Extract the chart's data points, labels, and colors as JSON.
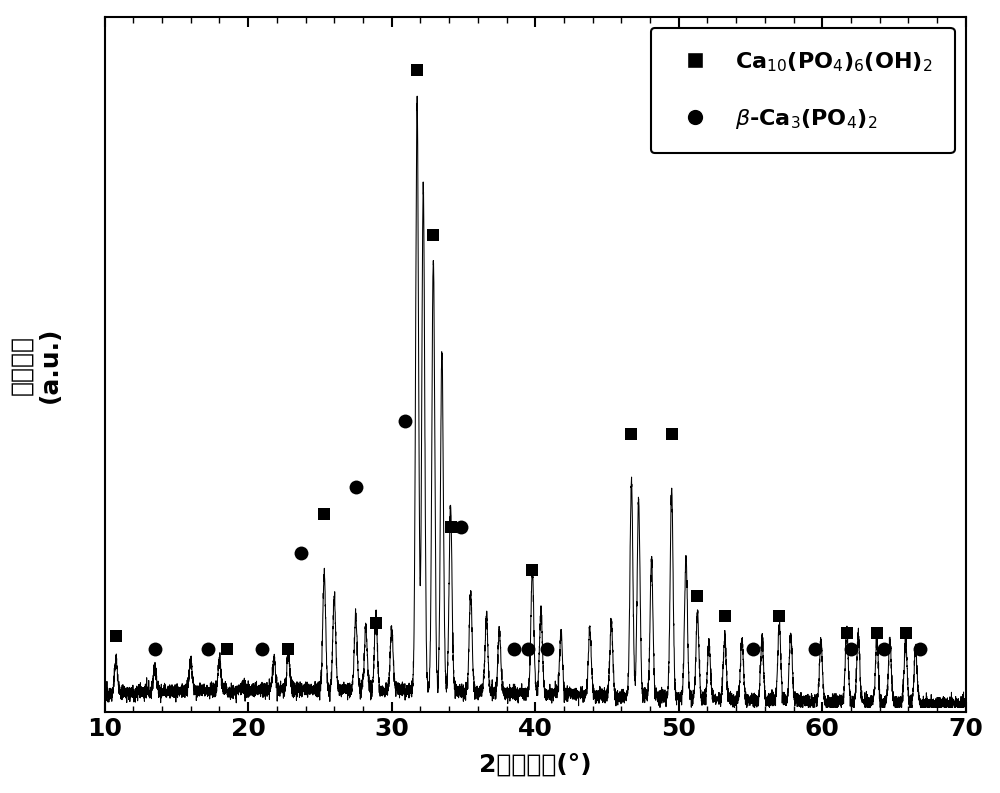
{
  "xlim": [
    10,
    70
  ],
  "ylim": [
    0,
    1.05
  ],
  "xlabel": "2倍衍射角(°)",
  "ylabel": "衍射强度（a.u.）",
  "ylabel_plain": "(a.u.)",
  "ylabel_chinese": "衍射强度",
  "background_color": "#ffffff",
  "line_color": "#000000",
  "marker_color": "#000000",
  "peaks": [
    [
      10.8,
      0.055
    ],
    [
      13.5,
      0.045
    ],
    [
      16.0,
      0.05
    ],
    [
      18.0,
      0.05
    ],
    [
      21.8,
      0.05
    ],
    [
      22.8,
      0.06
    ],
    [
      25.3,
      0.19
    ],
    [
      26.0,
      0.15
    ],
    [
      27.5,
      0.12
    ],
    [
      28.2,
      0.1
    ],
    [
      28.9,
      0.12
    ],
    [
      30.0,
      0.1
    ],
    [
      31.77,
      0.96
    ],
    [
      32.2,
      0.82
    ],
    [
      32.9,
      0.7
    ],
    [
      33.5,
      0.55
    ],
    [
      34.1,
      0.3
    ],
    [
      35.5,
      0.16
    ],
    [
      36.6,
      0.12
    ],
    [
      37.5,
      0.1
    ],
    [
      39.8,
      0.2
    ],
    [
      40.4,
      0.13
    ],
    [
      41.8,
      0.1
    ],
    [
      43.8,
      0.11
    ],
    [
      45.3,
      0.12
    ],
    [
      46.7,
      0.35
    ],
    [
      47.2,
      0.32
    ],
    [
      48.1,
      0.22
    ],
    [
      49.5,
      0.34
    ],
    [
      50.5,
      0.23
    ],
    [
      51.3,
      0.14
    ],
    [
      52.1,
      0.09
    ],
    [
      53.2,
      0.1
    ],
    [
      54.4,
      0.1
    ],
    [
      55.8,
      0.1
    ],
    [
      57.0,
      0.12
    ],
    [
      57.8,
      0.11
    ],
    [
      59.9,
      0.1
    ],
    [
      61.7,
      0.12
    ],
    [
      62.5,
      0.11
    ],
    [
      63.8,
      0.1
    ],
    [
      64.7,
      0.1
    ],
    [
      65.8,
      0.1
    ],
    [
      66.5,
      0.09
    ]
  ],
  "hap_markers": [
    [
      10.8,
      0.115
    ],
    [
      18.5,
      0.095
    ],
    [
      22.8,
      0.095
    ],
    [
      25.3,
      0.3
    ],
    [
      28.9,
      0.135
    ],
    [
      31.77,
      0.97
    ],
    [
      32.9,
      0.72
    ],
    [
      34.1,
      0.28
    ],
    [
      39.8,
      0.215
    ],
    [
      46.7,
      0.42
    ],
    [
      49.5,
      0.42
    ],
    [
      51.3,
      0.175
    ],
    [
      53.2,
      0.145
    ],
    [
      57.0,
      0.145
    ],
    [
      61.7,
      0.12
    ],
    [
      63.8,
      0.12
    ],
    [
      65.8,
      0.12
    ]
  ],
  "tcp_markers": [
    [
      13.5,
      0.095
    ],
    [
      17.2,
      0.095
    ],
    [
      21.0,
      0.095
    ],
    [
      23.7,
      0.24
    ],
    [
      27.5,
      0.34
    ],
    [
      30.9,
      0.44
    ],
    [
      34.8,
      0.28
    ],
    [
      38.5,
      0.095
    ],
    [
      39.5,
      0.095
    ],
    [
      40.8,
      0.095
    ],
    [
      55.2,
      0.095
    ],
    [
      59.5,
      0.095
    ],
    [
      62.0,
      0.095
    ],
    [
      64.3,
      0.095
    ],
    [
      66.8,
      0.095
    ]
  ]
}
